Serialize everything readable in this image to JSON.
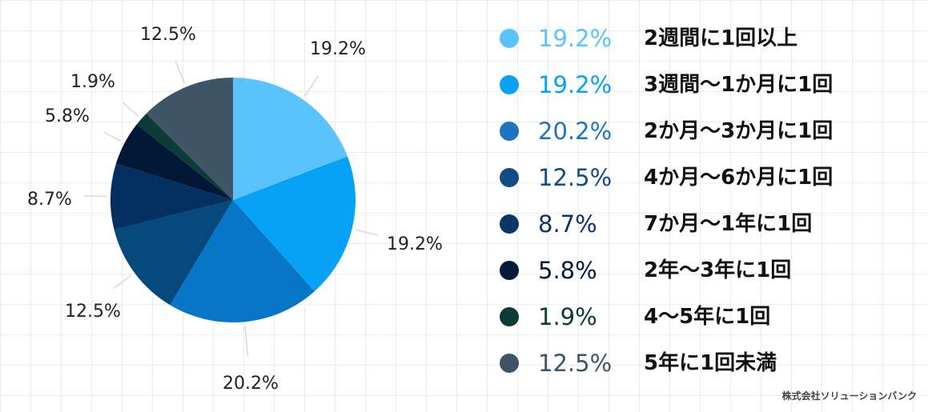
{
  "chart_data": {
    "type": "pie",
    "title": "",
    "categories": [
      "2週間に1回以上",
      "3週間〜1か月に1回",
      "2か月〜3か月に1回",
      "4か月〜6か月に1回",
      "7か月〜1年に1回",
      "2年〜3年に1回",
      "4〜5年に1回",
      "5年に1回未満"
    ],
    "values": [
      19.2,
      19.2,
      20.2,
      12.5,
      8.7,
      5.8,
      1.9,
      12.5
    ],
    "value_labels": [
      "19.2%",
      "19.2%",
      "20.2%",
      "12.5%",
      "8.7%",
      "5.8%",
      "1.9%",
      "12.5%"
    ],
    "colors": [
      "#5ac3fb",
      "#07a2f5",
      "#0876c7",
      "#06497c",
      "#033061",
      "#011737",
      "#0b3a37",
      "#3e5566"
    ],
    "start_angle": "12 o'clock",
    "direction": "clockwise",
    "legend_position": "right",
    "grid": true
  },
  "legend": {
    "items": [
      {
        "pct": "19.2%",
        "label": "2週間に1回以上",
        "color": "#5ac3fb"
      },
      {
        "pct": "19.2%",
        "label": "3週間〜1か月に1回",
        "color": "#07a2f5"
      },
      {
        "pct": "20.2%",
        "label": "2か月〜3か月に1回",
        "color": "#1f74bf"
      },
      {
        "pct": "12.5%",
        "label": "4か月〜6か月に1回",
        "color": "#104d82"
      },
      {
        "pct": "8.7%",
        "label": "7か月〜1年に1回",
        "color": "#0d3566"
      },
      {
        "pct": "5.8%",
        "label": "2年〜3年に1回",
        "color": "#021a3b"
      },
      {
        "pct": "1.9%",
        "label": "4〜5年に1回",
        "color": "#0b3a37"
      },
      {
        "pct": "12.5%",
        "label": "5年に1回未満",
        "color": "#3e5566"
      }
    ]
  },
  "credit": {
    "text": "株式会社ソリューションバンク"
  }
}
